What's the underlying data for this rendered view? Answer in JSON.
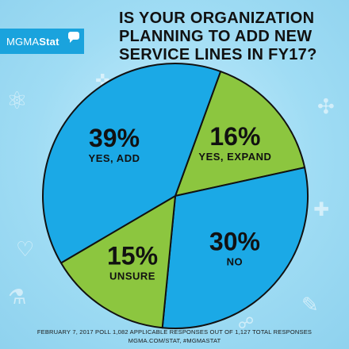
{
  "brand": {
    "name_plain": "MGMA",
    "name_bold": "Stat"
  },
  "title_lines": [
    "IS YOUR ORGANIZATION",
    "PLANNING TO ADD NEW",
    "SERVICE LINES IN FY17?"
  ],
  "chart_data": {
    "type": "pie",
    "title": "IS YOUR ORGANIZATION PLANNING TO ADD NEW SERVICE LINES IN FY17?",
    "start_angle_deg": 20,
    "slices": [
      {
        "label": "YES, EXPAND",
        "value": 16,
        "value_label": "16%",
        "color": "#8cc63f"
      },
      {
        "label": "NO",
        "value": 30,
        "value_label": "30%",
        "color": "#1ba9e6"
      },
      {
        "label": "UNSURE",
        "value": 15,
        "value_label": "15%",
        "color": "#8cc63f"
      },
      {
        "label": "YES, ADD",
        "value": 39,
        "value_label": "39%",
        "color": "#1ba9e6"
      }
    ],
    "outline_color": "#111111"
  },
  "footer": {
    "line1": "FEBRUARY 7, 2017 POLL  1,082 APPLICABLE RESPONSES OUT OF 1,127 TOTAL RESPONSES",
    "line2": "MGMA.COM/STAT, #MGMASTAT"
  },
  "background_icons": [
    "stethoscope-icon",
    "atom-icon",
    "pill-icon",
    "syringe-icon",
    "heart-icon",
    "microscope-icon",
    "flask-icon",
    "dna-icon"
  ]
}
